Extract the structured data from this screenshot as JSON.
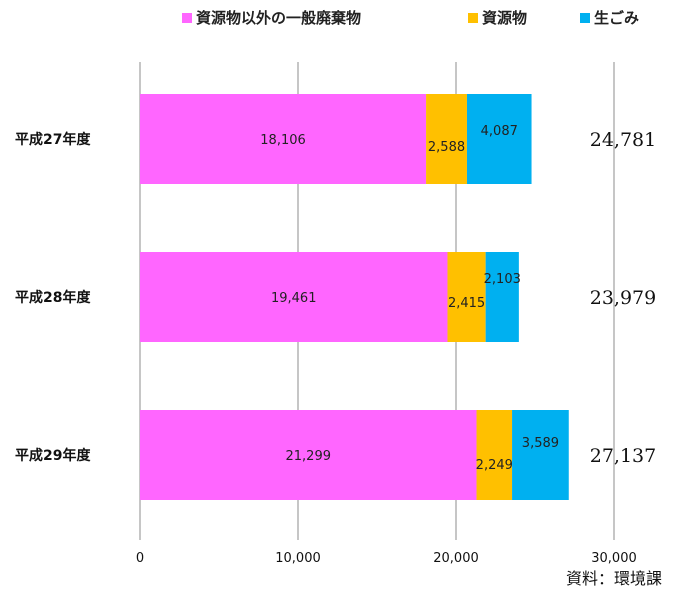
{
  "chart_data": {
    "type": "bar",
    "orientation": "horizontal",
    "stacked": true,
    "categories": [
      "平成27年度",
      "平成28年度",
      "平成29年度"
    ],
    "series": [
      {
        "name": "資源物以外の一般廃棄物",
        "color": "#ff66ff",
        "values": [
          18106,
          19461,
          21299
        ],
        "labels": [
          "18,106",
          "19,461",
          "21,299"
        ]
      },
      {
        "name": "資源物",
        "color": "#ffc000",
        "values": [
          2588,
          2415,
          2249
        ],
        "labels": [
          "2,588",
          "2,415",
          "2,249"
        ]
      },
      {
        "name": "生ごみ",
        "color": "#00b0f0",
        "values": [
          4087,
          2103,
          3589
        ],
        "labels": [
          "4,087",
          "2,103",
          "3,589"
        ]
      }
    ],
    "totals": [
      "24,781",
      "23,979",
      "27,137"
    ],
    "xlim": [
      0,
      30000
    ],
    "xticks": [
      0,
      10000,
      20000,
      30000
    ],
    "xtick_labels": [
      "0",
      "10,000",
      "20,000",
      "30,000"
    ],
    "grid": true,
    "legend_position": "top",
    "source": "資料：環境課"
  }
}
